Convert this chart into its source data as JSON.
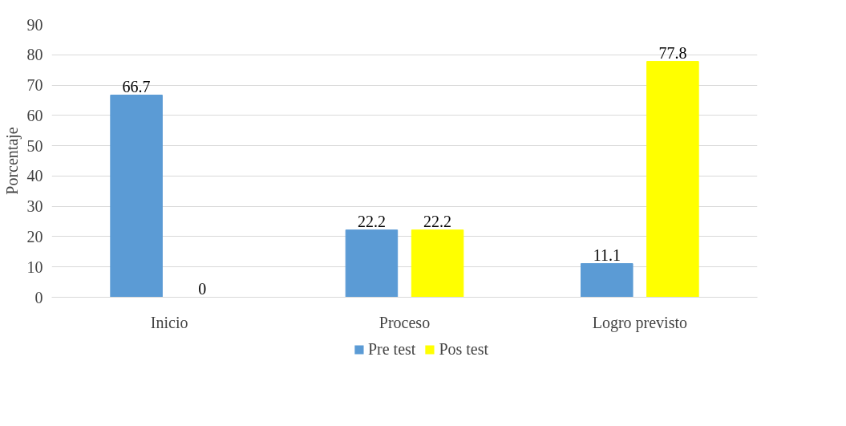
{
  "chart_data": {
    "type": "bar",
    "ylabel": "Porcentaje",
    "categories": [
      "Inicio",
      "Proceso",
      "Logro previsto"
    ],
    "series": [
      {
        "name": "Pre test",
        "color": "#5b9bd5",
        "values": [
          66.7,
          22.2,
          11.1
        ]
      },
      {
        "name": "Pos test",
        "color": "#ffff00",
        "values": [
          0,
          22.2,
          77.8
        ]
      }
    ],
    "ylim": [
      0,
      90
    ],
    "yticks": [
      0,
      10,
      20,
      30,
      40,
      50,
      60,
      70,
      80,
      90
    ],
    "grid": "y",
    "legend": "bottom",
    "data_labels": true
  }
}
